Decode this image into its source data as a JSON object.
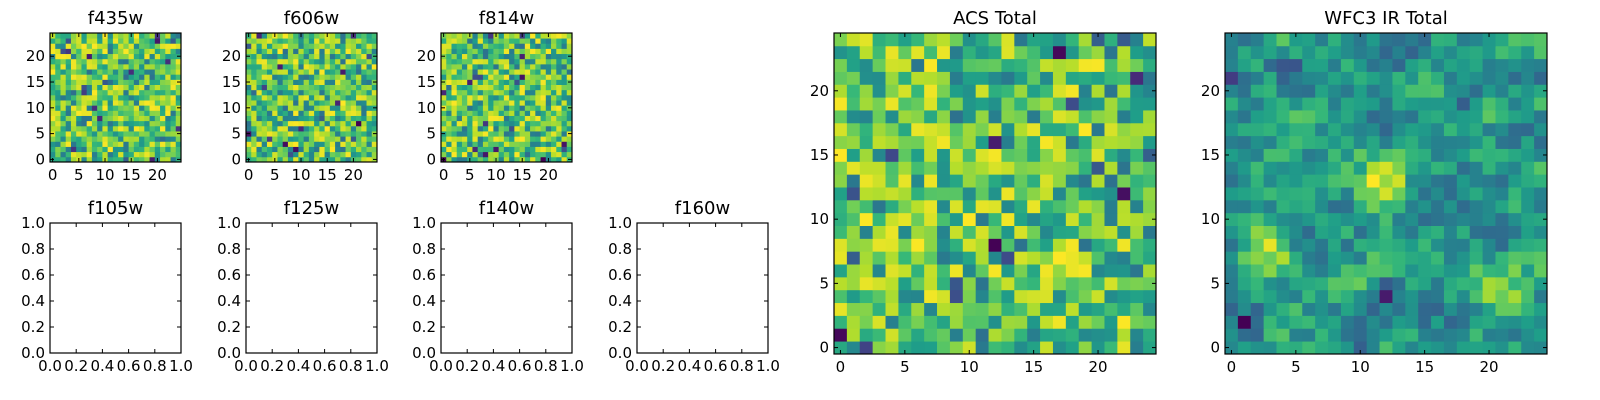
{
  "figure": {
    "background": "#ffffff"
  },
  "chart_data": [
    {
      "id": "f435w",
      "type": "heatmap",
      "title": "f435w",
      "colormap": "viridis",
      "shape": [
        25,
        25
      ],
      "xlim": [
        -0.5,
        24.5
      ],
      "ylim": [
        -0.5,
        24.5
      ],
      "xticks": [
        0,
        5,
        10,
        15,
        20
      ],
      "yticks": [
        0,
        5,
        10,
        15,
        20
      ],
      "xlabel": "",
      "ylabel": "",
      "seed": 11,
      "values_note_lo": 0.05,
      "values_note_hi": 1.0
    },
    {
      "id": "f606w",
      "type": "heatmap",
      "title": "f606w",
      "colormap": "viridis",
      "shape": [
        25,
        25
      ],
      "xlim": [
        -0.5,
        24.5
      ],
      "ylim": [
        -0.5,
        24.5
      ],
      "xticks": [
        0,
        5,
        10,
        15,
        20
      ],
      "yticks": [
        0,
        5,
        10,
        15,
        20
      ],
      "xlabel": "",
      "ylabel": "",
      "seed": 23
    },
    {
      "id": "f814w",
      "type": "heatmap",
      "title": "f814w",
      "colormap": "viridis",
      "shape": [
        25,
        25
      ],
      "xlim": [
        -0.5,
        24.5
      ],
      "ylim": [
        -0.5,
        24.5
      ],
      "xticks": [
        0,
        5,
        10,
        15,
        20
      ],
      "yticks": [
        0,
        5,
        10,
        15,
        20
      ],
      "xlabel": "",
      "ylabel": "",
      "seed": 37
    },
    {
      "id": "f105w",
      "type": "empty",
      "title": "f105w",
      "xlim": [
        0,
        1
      ],
      "ylim": [
        0,
        1
      ],
      "xticks": [
        "0.0",
        "0.2",
        "0.4",
        "0.6",
        "0.8",
        "1.0"
      ],
      "yticks": [
        "0.0",
        "0.2",
        "0.4",
        "0.6",
        "0.8",
        "1.0"
      ]
    },
    {
      "id": "f125w",
      "type": "empty",
      "title": "f125w",
      "xlim": [
        0,
        1
      ],
      "ylim": [
        0,
        1
      ],
      "xticks": [
        "0.0",
        "0.2",
        "0.4",
        "0.6",
        "0.8",
        "1.0"
      ],
      "yticks": [
        "0.0",
        "0.2",
        "0.4",
        "0.6",
        "0.8",
        "1.0"
      ]
    },
    {
      "id": "f140w",
      "type": "empty",
      "title": "f140w",
      "xlim": [
        0,
        1
      ],
      "ylim": [
        0,
        1
      ],
      "xticks": [
        "0.0",
        "0.2",
        "0.4",
        "0.6",
        "0.8",
        "1.0"
      ],
      "yticks": [
        "0.0",
        "0.2",
        "0.4",
        "0.6",
        "0.8",
        "1.0"
      ]
    },
    {
      "id": "f160w",
      "type": "empty",
      "title": "f160w",
      "xlim": [
        0,
        1
      ],
      "ylim": [
        0,
        1
      ],
      "xticks": [
        "0.0",
        "0.2",
        "0.4",
        "0.6",
        "0.8",
        "1.0"
      ],
      "yticks": [
        "0.0",
        "0.2",
        "0.4",
        "0.6",
        "0.8",
        "1.0"
      ]
    },
    {
      "id": "acs-total",
      "type": "heatmap",
      "title": "ACS Total",
      "colormap": "viridis",
      "shape": [
        25,
        25
      ],
      "xlim": [
        -0.5,
        24.5
      ],
      "ylim": [
        -0.5,
        24.5
      ],
      "xticks": [
        0,
        5,
        10,
        15,
        20
      ],
      "yticks": [
        0,
        5,
        10,
        15,
        20
      ],
      "xlabel": "",
      "ylabel": "",
      "seed": 53
    },
    {
      "id": "wfc3-ir-total",
      "type": "heatmap",
      "title": "WFC3 IR Total",
      "colormap": "viridis",
      "shape": [
        25,
        25
      ],
      "xlim": [
        -0.5,
        24.5
      ],
      "ylim": [
        -0.5,
        24.5
      ],
      "xticks": [
        0,
        5,
        10,
        15,
        20
      ],
      "yticks": [
        0,
        5,
        10,
        15,
        20
      ],
      "xlabel": "",
      "ylabel": "",
      "seed": 71,
      "smooth": true,
      "bright_spots": [
        [
          12,
          13
        ],
        [
          3,
          7
        ],
        [
          21,
          5
        ]
      ],
      "dark_spots": [
        [
          0,
          21
        ],
        [
          4,
          22
        ],
        [
          18,
          19
        ],
        [
          1,
          2
        ],
        [
          12,
          4
        ]
      ]
    }
  ]
}
